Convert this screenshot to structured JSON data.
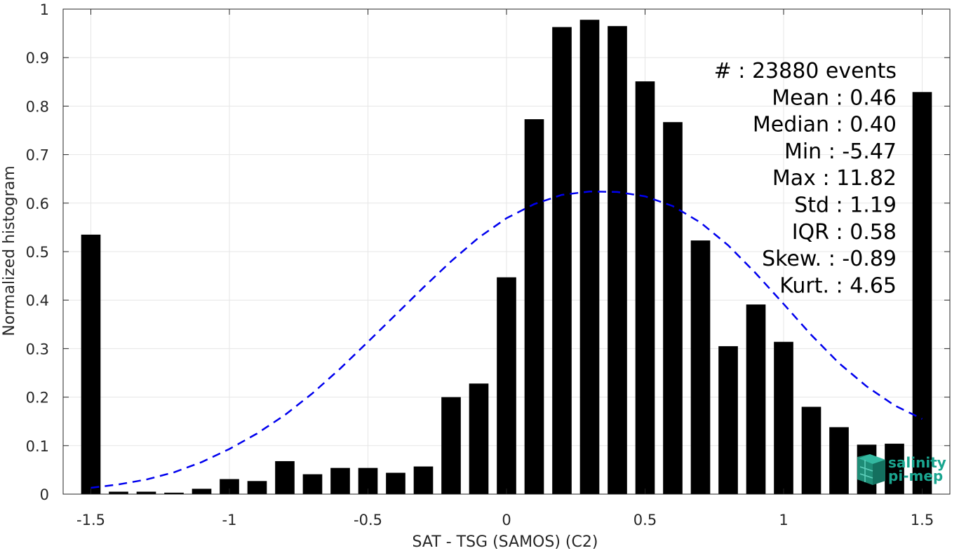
{
  "chart_data": {
    "type": "bar",
    "xlabel": "SAT - TSG (SAMOS) (C2)",
    "ylabel": "Normalized histogram",
    "xlim": [
      -1.6,
      1.6
    ],
    "ylim": [
      0,
      1
    ],
    "x_ticks": [
      -1.5,
      -1,
      -0.5,
      0,
      0.5,
      1,
      1.5
    ],
    "x_tick_labels": [
      "-1.5",
      "-1",
      "-0.5",
      "0",
      "0.5",
      "1",
      "1.5"
    ],
    "y_ticks": [
      0,
      0.1,
      0.2,
      0.3,
      0.4,
      0.5,
      0.6,
      0.7,
      0.8,
      0.9,
      1
    ],
    "y_tick_labels": [
      "0",
      "0.1",
      "0.2",
      "0.3",
      "0.4",
      "0.5",
      "0.6",
      "0.7",
      "0.8",
      "0.9",
      "1"
    ],
    "grid": true,
    "bar_width": 0.07,
    "bar_color": "#000000",
    "x": [
      -1.5,
      -1.4,
      -1.3,
      -1.2,
      -1.1,
      -1.0,
      -0.9,
      -0.8,
      -0.7,
      -0.6,
      -0.5,
      -0.4,
      -0.3,
      -0.2,
      -0.1,
      0.0,
      0.1,
      0.2,
      0.3,
      0.4,
      0.5,
      0.6,
      0.7,
      0.8,
      0.9,
      1.0,
      1.1,
      1.2,
      1.3,
      1.4,
      1.5
    ],
    "values": [
      0.535,
      0.005,
      0.005,
      0.003,
      0.011,
      0.031,
      0.027,
      0.068,
      0.041,
      0.054,
      0.054,
      0.044,
      0.057,
      0.2,
      0.228,
      0.447,
      0.773,
      0.963,
      0.978,
      0.965,
      0.851,
      0.767,
      0.523,
      0.305,
      0.391,
      0.314,
      0.18,
      0.138,
      0.102,
      0.104,
      0.829
    ],
    "fit_curve": {
      "style": "dashed",
      "color": "#0000ee",
      "x": [
        -1.5,
        -1.4,
        -1.3,
        -1.2,
        -1.1,
        -1.0,
        -0.9,
        -0.8,
        -0.7,
        -0.6,
        -0.5,
        -0.4,
        -0.3,
        -0.2,
        -0.1,
        0.0,
        0.1,
        0.2,
        0.3,
        0.4,
        0.5,
        0.6,
        0.7,
        0.8,
        0.9,
        1.0,
        1.1,
        1.2,
        1.3,
        1.4,
        1.5
      ],
      "y": [
        0.013,
        0.02,
        0.03,
        0.045,
        0.066,
        0.093,
        0.125,
        0.163,
        0.208,
        0.259,
        0.314,
        0.37,
        0.426,
        0.48,
        0.529,
        0.569,
        0.598,
        0.617,
        0.624,
        0.623,
        0.614,
        0.594,
        0.56,
        0.513,
        0.455,
        0.392,
        0.328,
        0.27,
        0.222,
        0.183,
        0.155
      ]
    },
    "annotations": [
      "#  : 23880 events",
      "Mean : 0.46",
      "Median : 0.40",
      "Min : -5.47",
      "Max : 11.82",
      "Std : 1.19",
      "IQR : 0.58",
      "Skew. : -0.89",
      "Kurt. : 4.65"
    ]
  },
  "logo": {
    "line1": "salinity",
    "line2": "pi-mep",
    "color": "#1aa58f"
  }
}
